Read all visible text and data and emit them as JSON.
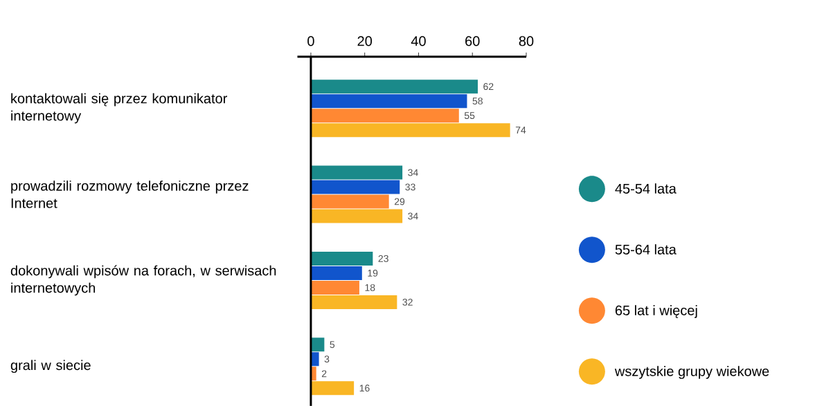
{
  "chart_data": {
    "type": "bar",
    "orientation": "horizontal",
    "categories": [
      "kontaktowali się przez komunikator internetowy",
      "prowadzili rozmowy telefoniczne przez Internet",
      "dokonywali wpisów na forach, w serwisach internetowych",
      "grali w siecie"
    ],
    "series": [
      {
        "name": "45-54 lata",
        "color": "#1a8a8a",
        "values": [
          62,
          34,
          23,
          5
        ]
      },
      {
        "name": "55-64 lata",
        "color": "#1155cc",
        "values": [
          58,
          33,
          19,
          3
        ]
      },
      {
        "name": "65 lat i więcej",
        "color": "#ff8833",
        "values": [
          55,
          29,
          18,
          2
        ]
      },
      {
        "name": "wszytskie grupy wiekowe",
        "color": "#f9b625",
        "values": [
          74,
          34,
          32,
          16
        ]
      }
    ],
    "xlim": [
      -5,
      80
    ],
    "xticks": [
      0,
      20,
      40,
      60,
      80
    ],
    "data_labels": true,
    "legend": "right",
    "grid": false
  }
}
